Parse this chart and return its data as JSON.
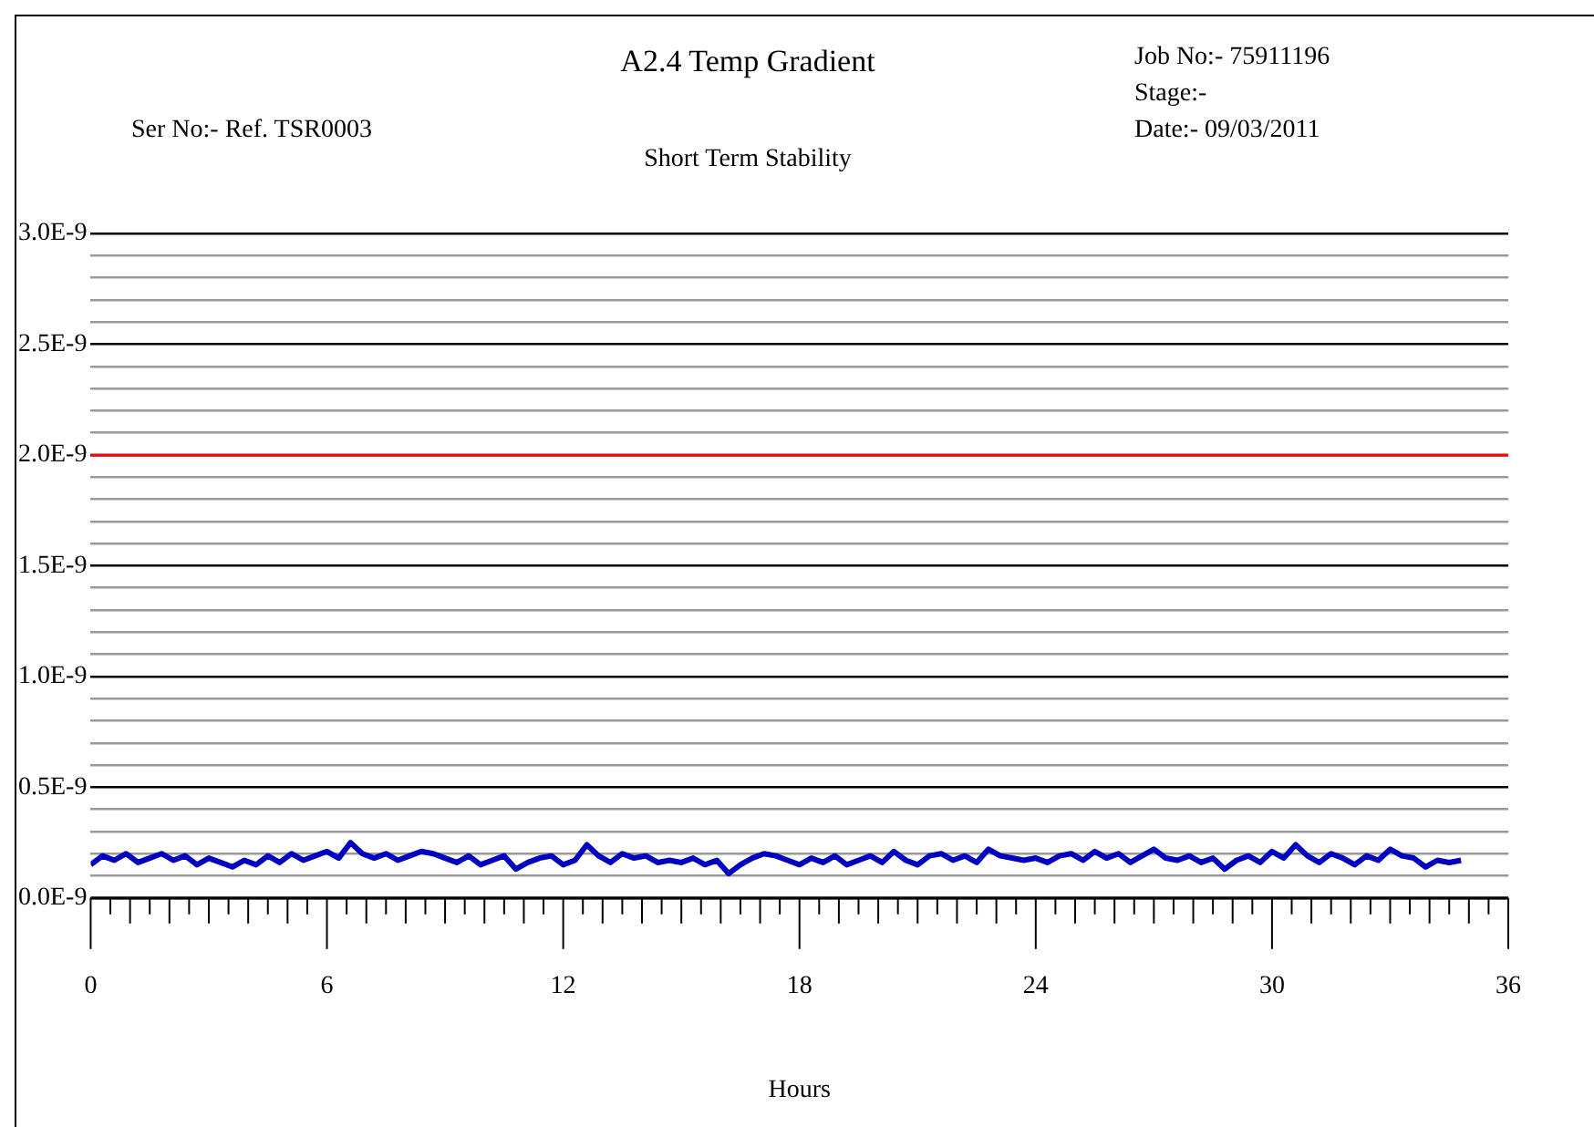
{
  "chart_data": {
    "type": "line",
    "title": "A2.4 Temp Gradient",
    "subtitle": "Short Term Stability",
    "xlabel": "Hours",
    "annotations": [
      "Ser No:- Ref. TSR0003",
      "Job No:- 75911196",
      "Stage:-",
      "Date:- 09/03/2011"
    ],
    "x": [
      0,
      0.3,
      0.6,
      0.9,
      1.2,
      1.5,
      1.8,
      2.1,
      2.4,
      2.7,
      3.0,
      3.3,
      3.6,
      3.9,
      4.2,
      4.5,
      4.8,
      5.1,
      5.4,
      5.7,
      6.0,
      6.3,
      6.6,
      6.9,
      7.2,
      7.5,
      7.8,
      8.1,
      8.4,
      8.7,
      9.0,
      9.3,
      9.6,
      9.9,
      10.2,
      10.5,
      10.8,
      11.1,
      11.4,
      11.7,
      12.0,
      12.3,
      12.6,
      12.9,
      13.2,
      13.5,
      13.8,
      14.1,
      14.4,
      14.7,
      15.0,
      15.3,
      15.6,
      15.9,
      16.2,
      16.5,
      16.8,
      17.1,
      17.4,
      17.7,
      18.0,
      18.3,
      18.6,
      18.9,
      19.2,
      19.5,
      19.8,
      20.1,
      20.4,
      20.7,
      21.0,
      21.3,
      21.6,
      21.9,
      22.2,
      22.5,
      22.8,
      23.1,
      23.4,
      23.7,
      24.0,
      24.3,
      24.6,
      24.9,
      25.2,
      25.5,
      25.8,
      26.1,
      26.4,
      26.7,
      27.0,
      27.3,
      27.6,
      27.9,
      28.2,
      28.5,
      28.8,
      29.1,
      29.4,
      29.7,
      30.0,
      30.3,
      30.6,
      30.9,
      31.2,
      31.5,
      31.8,
      32.1,
      32.4,
      32.7,
      33.0,
      33.3,
      33.6,
      33.9,
      34.2,
      34.5,
      34.8
    ],
    "series": [
      {
        "color": "#0000c0",
        "values": [
          1.5e-10,
          1.9e-10,
          1.7e-10,
          2e-10,
          1.6e-10,
          1.8e-10,
          2e-10,
          1.7e-10,
          1.9e-10,
          1.5e-10,
          1.8e-10,
          1.6e-10,
          1.4e-10,
          1.7e-10,
          1.5e-10,
          1.9e-10,
          1.6e-10,
          2e-10,
          1.7e-10,
          1.9e-10,
          2.1e-10,
          1.8e-10,
          2.5e-10,
          2e-10,
          1.8e-10,
          2e-10,
          1.7e-10,
          1.9e-10,
          2.1e-10,
          2e-10,
          1.8e-10,
          1.6e-10,
          1.9e-10,
          1.5e-10,
          1.7e-10,
          1.9e-10,
          1.3e-10,
          1.6e-10,
          1.8e-10,
          1.9e-10,
          1.5e-10,
          1.7e-10,
          2.4e-10,
          1.9e-10,
          1.6e-10,
          2e-10,
          1.8e-10,
          1.9e-10,
          1.6e-10,
          1.7e-10,
          1.6e-10,
          1.8e-10,
          1.5e-10,
          1.7e-10,
          1.1e-10,
          1.5e-10,
          1.8e-10,
          2e-10,
          1.9e-10,
          1.7e-10,
          1.5e-10,
          1.8e-10,
          1.6e-10,
          1.9e-10,
          1.5e-10,
          1.7e-10,
          1.9e-10,
          1.6e-10,
          2.1e-10,
          1.7e-10,
          1.5e-10,
          1.9e-10,
          2e-10,
          1.7e-10,
          1.9e-10,
          1.6e-10,
          2.2e-10,
          1.9e-10,
          1.8e-10,
          1.7e-10,
          1.8e-10,
          1.6e-10,
          1.9e-10,
          2e-10,
          1.7e-10,
          2.1e-10,
          1.8e-10,
          2e-10,
          1.6e-10,
          1.9e-10,
          2.2e-10,
          1.8e-10,
          1.7e-10,
          1.9e-10,
          1.6e-10,
          1.8e-10,
          1.3e-10,
          1.7e-10,
          1.9e-10,
          1.6e-10,
          2.1e-10,
          1.8e-10,
          2.4e-10,
          1.9e-10,
          1.6e-10,
          2e-10,
          1.8e-10,
          1.5e-10,
          1.9e-10,
          1.7e-10,
          2.2e-10,
          1.9e-10,
          1.8e-10,
          1.4e-10,
          1.7e-10,
          1.6e-10,
          1.7e-10
        ]
      }
    ],
    "xlim": [
      0,
      36
    ],
    "xticks": [
      0,
      {
        "value": 0.5,
        "label": null
      },
      {
        "value": 1,
        "label": null
      },
      {
        "value": 1.5,
        "label": null
      },
      {
        "value": 2,
        "label": null
      },
      {
        "value": 2.5,
        "label": null
      },
      {
        "value": 3,
        "label": null
      },
      {
        "value": 3.5,
        "label": null
      },
      {
        "value": 4,
        "label": null
      },
      {
        "value": 4.5,
        "label": null
      },
      {
        "value": 5,
        "label": null
      },
      {
        "value": 5.5,
        "label": null
      },
      6,
      {
        "value": 6.5,
        "label": null
      },
      {
        "value": 7,
        "label": null
      },
      {
        "value": 7.5,
        "label": null
      },
      {
        "value": 8,
        "label": null
      },
      {
        "value": 8.5,
        "label": null
      },
      {
        "value": 9,
        "label": null
      },
      {
        "value": 9.5,
        "label": null
      },
      {
        "value": 10,
        "label": null
      },
      {
        "value": 10.5,
        "label": null
      },
      {
        "value": 11,
        "label": null
      },
      {
        "value": 11.5,
        "label": null
      },
      12,
      {
        "value": 12.5,
        "label": null
      },
      {
        "value": 13,
        "label": null
      },
      {
        "value": 13.5,
        "label": null
      },
      {
        "value": 14,
        "label": null
      },
      {
        "value": 14.5,
        "label": null
      },
      {
        "value": 15,
        "label": null
      },
      {
        "value": 15.5,
        "label": null
      },
      {
        "value": 16,
        "label": null
      },
      {
        "value": 16.5,
        "label": null
      },
      {
        "value": 17,
        "label": null
      },
      {
        "value": 17.5,
        "label": null
      },
      18,
      {
        "value": 18.5,
        "label": null
      },
      {
        "value": 19,
        "label": null
      },
      {
        "value": 19.5,
        "label": null
      },
      {
        "value": 20,
        "label": null
      },
      {
        "value": 20.5,
        "label": null
      },
      {
        "value": 21,
        "label": null
      },
      {
        "value": 21.5,
        "label": null
      },
      {
        "value": 22,
        "label": null
      },
      {
        "value": 22.5,
        "label": null
      },
      {
        "value": 23,
        "label": null
      },
      {
        "value": 23.5,
        "label": null
      },
      24,
      {
        "value": 24.5,
        "label": null
      },
      {
        "value": 25,
        "label": null
      },
      {
        "value": 25.5,
        "label": null
      },
      {
        "value": 26,
        "label": null
      },
      {
        "value": 26.5,
        "label": null
      },
      {
        "value": 27,
        "label": null
      },
      {
        "value": 27.5,
        "label": null
      },
      {
        "value": 28,
        "label": null
      },
      {
        "value": 28.5,
        "label": null
      },
      {
        "value": 29,
        "label": null
      },
      {
        "value": 29.5,
        "label": null
      },
      30,
      {
        "value": 30.5,
        "label": null
      },
      {
        "value": 31,
        "label": null
      },
      {
        "value": 31.5,
        "label": null
      },
      {
        "value": 32,
        "label": null
      },
      {
        "value": 32.5,
        "label": null
      },
      {
        "value": 33,
        "label": null
      },
      {
        "value": 33.5,
        "label": null
      },
      {
        "value": 34,
        "label": null
      },
      {
        "value": 34.5,
        "label": null
      },
      {
        "value": 35,
        "label": null
      },
      {
        "value": 35.5,
        "label": null
      },
      36
    ],
    "ylim": [
      0,
      3e-09
    ],
    "yticks": [
      {
        "value": 0,
        "label": "0.0E-9"
      },
      {
        "value": 1e-10,
        "label": null
      },
      {
        "value": 2e-10,
        "label": null
      },
      {
        "value": 3e-10,
        "label": null
      },
      {
        "value": 4e-10,
        "label": null
      },
      {
        "value": 5e-10,
        "label": "0.5E-9"
      },
      {
        "value": 6e-10,
        "label": null
      },
      {
        "value": 7e-10,
        "label": null
      },
      {
        "value": 8e-10,
        "label": null
      },
      {
        "value": 9e-10,
        "label": null
      },
      {
        "value": 1e-09,
        "label": "1.0E-9"
      },
      {
        "value": 1.1e-09,
        "label": null
      },
      {
        "value": 1.2e-09,
        "label": null
      },
      {
        "value": 1.3e-09,
        "label": null
      },
      {
        "value": 1.4e-09,
        "label": null
      },
      {
        "value": 1.5e-09,
        "label": "1.5E-9"
      },
      {
        "value": 1.6e-09,
        "label": null
      },
      {
        "value": 1.7e-09,
        "label": null
      },
      {
        "value": 1.8e-09,
        "label": null
      },
      {
        "value": 1.9e-09,
        "label": null
      },
      {
        "value": 2e-09,
        "label": "2.0E-9"
      },
      {
        "value": 2.1e-09,
        "label": null
      },
      {
        "value": 2.2e-09,
        "label": null
      },
      {
        "value": 2.3e-09,
        "label": null
      },
      {
        "value": 2.4e-09,
        "label": null
      },
      {
        "value": 2.5e-09,
        "label": "2.5E-9"
      },
      {
        "value": 2.6e-09,
        "label": null
      },
      {
        "value": 2.7e-09,
        "label": null
      },
      {
        "value": 2.8e-09,
        "label": null
      },
      {
        "value": 2.9e-09,
        "label": null
      },
      {
        "value": 3e-09,
        "label": "3.0E-9"
      }
    ],
    "ref_lines": [
      {
        "axis": "y",
        "value": 2e-09,
        "color": "#ff0000"
      }
    ],
    "grid": "y",
    "legend": false,
    "marker": "none",
    "line_style": "solid"
  }
}
